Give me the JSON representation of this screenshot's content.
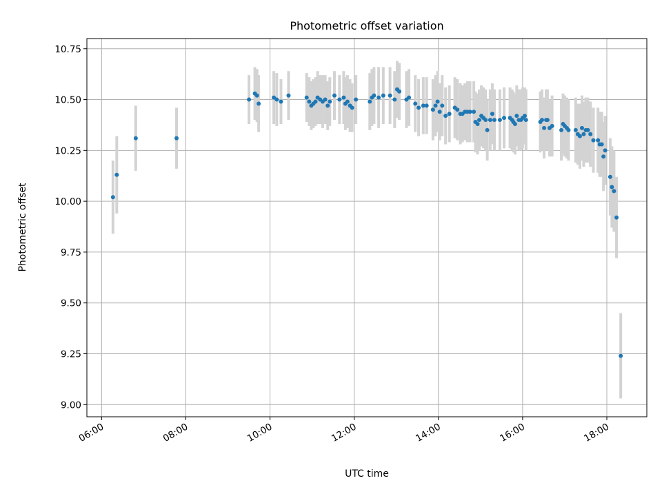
{
  "chart_data": {
    "type": "scatter",
    "title": "Photometric offset variation",
    "xlabel": "UTC time",
    "ylabel": "Photometric offset",
    "x_unit": "hours UTC",
    "xlim": [
      5.65,
      18.95
    ],
    "ylim": [
      8.94,
      10.8
    ],
    "grid": true,
    "x_ticks": [
      {
        "value": 6,
        "label": "06:00"
      },
      {
        "value": 8,
        "label": "08:00"
      },
      {
        "value": 10,
        "label": "10:00"
      },
      {
        "value": 12,
        "label": "12:00"
      },
      {
        "value": 14,
        "label": "14:00"
      },
      {
        "value": 16,
        "label": "16:00"
      },
      {
        "value": 18,
        "label": "18:00"
      }
    ],
    "y_ticks": [
      {
        "value": 9.0,
        "label": "9.00"
      },
      {
        "value": 9.25,
        "label": "9.25"
      },
      {
        "value": 9.5,
        "label": "9.50"
      },
      {
        "value": 9.75,
        "label": "9.75"
      },
      {
        "value": 10.0,
        "label": "10.00"
      },
      {
        "value": 10.25,
        "label": "10.25"
      },
      {
        "value": 10.5,
        "label": "10.50"
      },
      {
        "value": 10.75,
        "label": "10.75"
      }
    ],
    "colors": {
      "marker": "#1f77b4",
      "errorbar": "#d3d3d3"
    },
    "points": [
      [
        6.27,
        10.02,
        0.18
      ],
      [
        6.36,
        10.13,
        0.19
      ],
      [
        6.81,
        10.31,
        0.16
      ],
      [
        7.78,
        10.31,
        0.15
      ],
      [
        9.5,
        10.5,
        0.12
      ],
      [
        9.64,
        10.53,
        0.13
      ],
      [
        9.69,
        10.52,
        0.13
      ],
      [
        9.73,
        10.48,
        0.14
      ],
      [
        10.09,
        10.51,
        0.13
      ],
      [
        10.16,
        10.5,
        0.13
      ],
      [
        10.26,
        10.49,
        0.11
      ],
      [
        10.44,
        10.52,
        0.12
      ],
      [
        10.87,
        10.51,
        0.12
      ],
      [
        10.93,
        10.49,
        0.12
      ],
      [
        10.98,
        10.47,
        0.12
      ],
      [
        11.03,
        10.48,
        0.12
      ],
      [
        11.08,
        10.49,
        0.12
      ],
      [
        11.13,
        10.51,
        0.13
      ],
      [
        11.19,
        10.5,
        0.12
      ],
      [
        11.25,
        10.49,
        0.13
      ],
      [
        11.31,
        10.5,
        0.12
      ],
      [
        11.37,
        10.47,
        0.12
      ],
      [
        11.42,
        10.49,
        0.12
      ],
      [
        11.53,
        10.52,
        0.12
      ],
      [
        11.65,
        10.5,
        0.12
      ],
      [
        11.75,
        10.51,
        0.13
      ],
      [
        11.79,
        10.48,
        0.13
      ],
      [
        11.84,
        10.49,
        0.13
      ],
      [
        11.9,
        10.47,
        0.13
      ],
      [
        11.95,
        10.46,
        0.12
      ],
      [
        12.04,
        10.5,
        0.12
      ],
      [
        12.37,
        10.49,
        0.14
      ],
      [
        12.42,
        10.51,
        0.14
      ],
      [
        12.47,
        10.52,
        0.14
      ],
      [
        12.58,
        10.51,
        0.15
      ],
      [
        12.69,
        10.52,
        0.14
      ],
      [
        12.85,
        10.52,
        0.14
      ],
      [
        12.96,
        10.5,
        0.14
      ],
      [
        13.02,
        10.55,
        0.14
      ],
      [
        13.07,
        10.54,
        0.14
      ],
      [
        13.24,
        10.5,
        0.14
      ],
      [
        13.3,
        10.51,
        0.14
      ],
      [
        13.45,
        10.48,
        0.14
      ],
      [
        13.53,
        10.46,
        0.14
      ],
      [
        13.64,
        10.47,
        0.14
      ],
      [
        13.72,
        10.47,
        0.14
      ],
      [
        13.87,
        10.45,
        0.15
      ],
      [
        13.93,
        10.47,
        0.15
      ],
      [
        13.98,
        10.49,
        0.15
      ],
      [
        14.03,
        10.44,
        0.14
      ],
      [
        14.09,
        10.47,
        0.15
      ],
      [
        14.17,
        10.42,
        0.14
      ],
      [
        14.26,
        10.43,
        0.14
      ],
      [
        14.39,
        10.46,
        0.15
      ],
      [
        14.45,
        10.45,
        0.15
      ],
      [
        14.52,
        10.43,
        0.15
      ],
      [
        14.57,
        10.43,
        0.14
      ],
      [
        14.63,
        10.44,
        0.14
      ],
      [
        14.69,
        10.44,
        0.15
      ],
      [
        14.75,
        10.44,
        0.15
      ],
      [
        14.84,
        10.44,
        0.15
      ],
      [
        14.88,
        10.39,
        0.15
      ],
      [
        14.93,
        10.38,
        0.15
      ],
      [
        14.97,
        10.4,
        0.15
      ],
      [
        15.02,
        10.42,
        0.15
      ],
      [
        15.07,
        10.41,
        0.15
      ],
      [
        15.12,
        10.4,
        0.15
      ],
      [
        15.16,
        10.35,
        0.15
      ],
      [
        15.23,
        10.4,
        0.15
      ],
      [
        15.28,
        10.43,
        0.15
      ],
      [
        15.33,
        10.4,
        0.15
      ],
      [
        15.46,
        10.4,
        0.15
      ],
      [
        15.56,
        10.41,
        0.15
      ],
      [
        15.7,
        10.41,
        0.15
      ],
      [
        15.75,
        10.4,
        0.15
      ],
      [
        15.78,
        10.39,
        0.15
      ],
      [
        15.82,
        10.38,
        0.15
      ],
      [
        15.86,
        10.42,
        0.15
      ],
      [
        15.91,
        10.4,
        0.15
      ],
      [
        15.96,
        10.4,
        0.15
      ],
      [
        16.0,
        10.41,
        0.15
      ],
      [
        16.05,
        10.42,
        0.14
      ],
      [
        16.08,
        10.4,
        0.15
      ],
      [
        16.42,
        10.39,
        0.15
      ],
      [
        16.46,
        10.4,
        0.15
      ],
      [
        16.51,
        10.36,
        0.15
      ],
      [
        16.56,
        10.4,
        0.15
      ],
      [
        16.59,
        10.4,
        0.15
      ],
      [
        16.64,
        10.36,
        0.14
      ],
      [
        16.7,
        10.37,
        0.15
      ],
      [
        16.92,
        10.35,
        0.15
      ],
      [
        16.96,
        10.38,
        0.15
      ],
      [
        17.0,
        10.37,
        0.15
      ],
      [
        17.05,
        10.36,
        0.15
      ],
      [
        17.09,
        10.35,
        0.15
      ],
      [
        17.26,
        10.35,
        0.16
      ],
      [
        17.31,
        10.33,
        0.15
      ],
      [
        17.36,
        10.32,
        0.16
      ],
      [
        17.41,
        10.36,
        0.16
      ],
      [
        17.45,
        10.33,
        0.16
      ],
      [
        17.5,
        10.35,
        0.16
      ],
      [
        17.55,
        10.35,
        0.16
      ],
      [
        17.61,
        10.33,
        0.16
      ],
      [
        17.68,
        10.3,
        0.16
      ],
      [
        17.79,
        10.3,
        0.16
      ],
      [
        17.83,
        10.28,
        0.16
      ],
      [
        17.88,
        10.28,
        0.16
      ],
      [
        17.92,
        10.22,
        0.17
      ],
      [
        17.96,
        10.25,
        0.17
      ],
      [
        18.08,
        10.12,
        0.19
      ],
      [
        18.12,
        10.07,
        0.2
      ],
      [
        18.17,
        10.05,
        0.2
      ],
      [
        18.23,
        9.92,
        0.2
      ],
      [
        18.33,
        9.24,
        0.21
      ]
    ]
  }
}
